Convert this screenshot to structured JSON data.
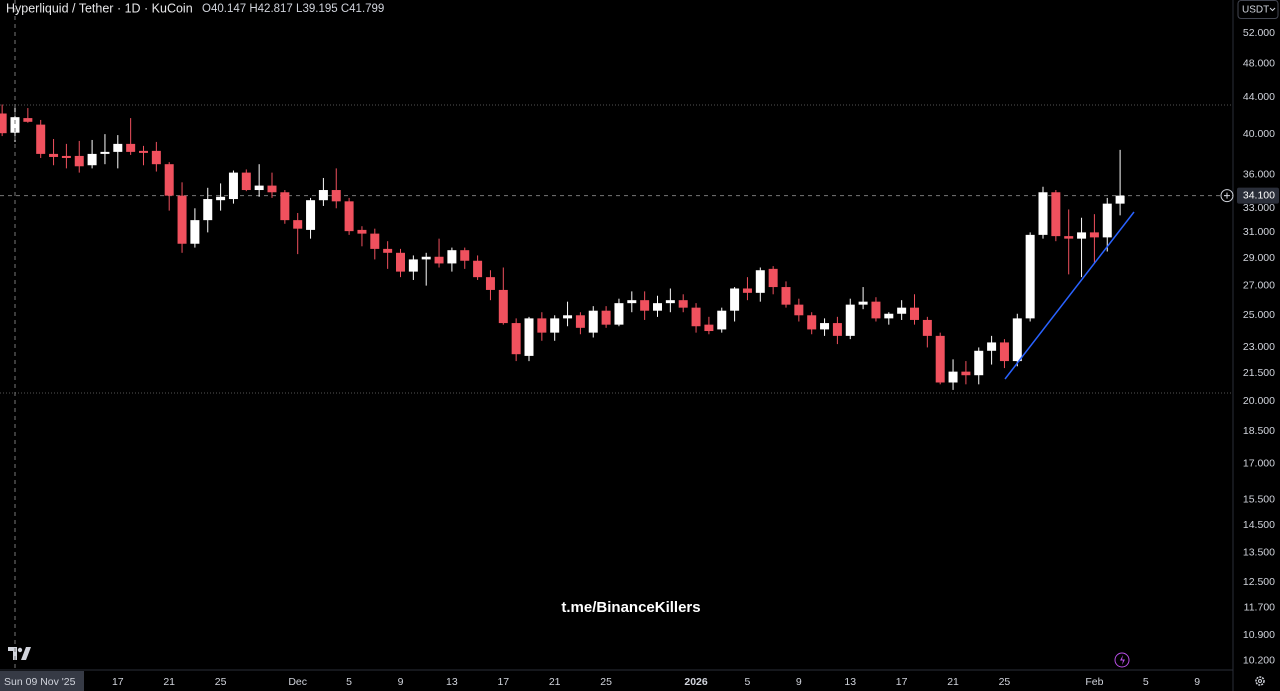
{
  "chart_data": {
    "type": "candlestick",
    "title": "Hyperliquid / Tether · 1D · KuCoin",
    "legend_labels": [
      "O",
      "H",
      "L",
      "C"
    ],
    "currency": "USDT",
    "watermark": "t.me/BinanceKillers",
    "scale": "log",
    "grid": false,
    "up_color": "#ffffff",
    "down_color": "#f0515e",
    "categories": [
      null,
      "Sun 09 Nov '25",
      null,
      null,
      null,
      null,
      null,
      null,
      null,
      "17",
      null,
      null,
      null,
      "21",
      null,
      null,
      null,
      "25",
      null,
      null,
      null,
      null,
      null,
      "Dec",
      null,
      null,
      null,
      "5",
      null,
      null,
      null,
      "9",
      null,
      null,
      null,
      "13",
      null,
      null,
      null,
      "17",
      null,
      null,
      null,
      "21",
      null,
      null,
      null,
      "25",
      null,
      null,
      null,
      null,
      null,
      null,
      "2026",
      null,
      null,
      null,
      "5",
      null,
      null,
      null,
      "9",
      null,
      null,
      null,
      "13",
      null,
      null,
      null,
      "17",
      null,
      null,
      null,
      "21",
      null,
      null,
      null,
      "25",
      null,
      null,
      null,
      null,
      null,
      null,
      "Feb",
      null,
      null,
      null,
      "5",
      null,
      null,
      null,
      "9"
    ],
    "open": [
      42.2,
      40.147,
      41.7,
      41.0,
      38.0,
      37.8,
      37.8,
      36.9,
      38.0,
      38.2,
      39.0,
      38.3,
      38.3,
      37.0,
      34.1,
      30.1,
      32.0,
      33.7,
      33.8,
      36.2,
      34.6,
      35.0,
      34.4,
      32.0,
      31.2,
      33.7,
      34.6,
      33.6,
      31.2,
      30.9,
      29.7,
      29.4,
      28.0,
      28.9,
      29.1,
      28.6,
      29.6,
      28.8,
      27.6,
      26.7,
      24.5,
      22.5,
      24.8,
      23.9,
      24.8,
      25.0,
      23.9,
      25.3,
      24.4,
      25.8,
      26.0,
      25.3,
      25.8,
      26.0,
      25.5,
      24.4,
      24.1,
      25.3,
      26.8,
      26.5,
      28.2,
      26.9,
      25.7,
      25.0,
      24.1,
      24.5,
      23.7,
      25.7,
      25.9,
      24.8,
      25.1,
      25.5,
      24.7,
      23.7,
      21.0,
      21.6,
      21.4,
      22.8,
      23.3,
      22.2,
      24.8,
      30.8,
      34.4,
      30.7,
      30.5,
      31.0,
      30.6,
      33.4,
      null,
      null,
      null,
      null,
      null,
      null
    ],
    "high": [
      43.2,
      42.817,
      42.8,
      41.5,
      39.5,
      39.0,
      39.3,
      39.4,
      40.0,
      39.9,
      41.7,
      38.8,
      39.2,
      37.2,
      35.3,
      33.0,
      34.8,
      35.2,
      36.4,
      36.5,
      37.0,
      36.2,
      34.6,
      32.6,
      33.9,
      35.7,
      36.6,
      33.9,
      31.5,
      31.3,
      30.3,
      29.7,
      29.2,
      29.4,
      30.5,
      29.8,
      29.8,
      29.2,
      28.1,
      28.3,
      24.8,
      24.9,
      25.2,
      25.0,
      25.9,
      25.2,
      25.6,
      25.6,
      26.1,
      26.6,
      26.6,
      26.3,
      26.8,
      26.4,
      25.8,
      24.9,
      25.5,
      26.9,
      27.6,
      28.3,
      28.4,
      27.3,
      26.1,
      25.2,
      24.8,
      24.9,
      26.1,
      26.9,
      26.2,
      25.2,
      26.0,
      26.4,
      24.9,
      23.9,
      22.3,
      22.2,
      23.0,
      23.7,
      23.5,
      25.1,
      31.0,
      34.9,
      34.6,
      32.9,
      32.2,
      32.5,
      33.9,
      38.4,
      null,
      null,
      null,
      null,
      null,
      null
    ],
    "low": [
      39.8,
      39.195,
      41.2,
      37.6,
      36.9,
      36.6,
      36.2,
      36.6,
      37.0,
      36.6,
      37.9,
      36.9,
      36.3,
      32.8,
      29.4,
      29.8,
      31.0,
      32.8,
      33.4,
      34.5,
      34.0,
      33.9,
      31.7,
      29.3,
      30.5,
      33.2,
      33.0,
      30.8,
      29.9,
      28.9,
      28.2,
      27.6,
      27.4,
      27.0,
      28.3,
      28.0,
      28.2,
      27.4,
      26.0,
      24.4,
      22.2,
      22.2,
      23.4,
      23.4,
      24.3,
      23.8,
      23.6,
      24.2,
      24.3,
      25.2,
      24.7,
      24.9,
      25.2,
      25.2,
      23.9,
      23.8,
      23.9,
      24.6,
      26.0,
      25.9,
      26.4,
      25.5,
      24.6,
      23.8,
      23.7,
      23.2,
      23.5,
      25.4,
      24.6,
      24.4,
      24.7,
      24.4,
      23.0,
      20.9,
      20.6,
      20.9,
      20.9,
      22.0,
      21.8,
      21.9,
      24.6,
      30.5,
      30.3,
      27.8,
      27.6,
      28.6,
      29.5,
      32.4,
      null,
      null,
      null,
      null,
      null,
      null
    ],
    "close": [
      40.1,
      41.799,
      41.3,
      38.0,
      37.7,
      37.6,
      36.8,
      38.0,
      38.2,
      39.0,
      38.2,
      38.1,
      37.0,
      34.1,
      30.1,
      32.0,
      33.8,
      34.0,
      36.2,
      34.6,
      35.0,
      34.4,
      32.0,
      31.3,
      33.7,
      34.6,
      33.6,
      31.1,
      30.9,
      29.7,
      29.4,
      28.0,
      28.9,
      29.1,
      28.6,
      29.6,
      28.8,
      27.6,
      26.7,
      24.5,
      22.6,
      24.8,
      23.9,
      24.8,
      25.0,
      24.2,
      25.3,
      24.4,
      25.8,
      26.0,
      25.3,
      25.8,
      26.0,
      25.5,
      24.3,
      24.0,
      25.3,
      26.8,
      26.5,
      28.1,
      26.9,
      25.7,
      25.0,
      24.1,
      24.5,
      23.7,
      25.7,
      25.9,
      24.8,
      25.1,
      25.5,
      24.7,
      23.7,
      21.0,
      21.6,
      21.4,
      22.8,
      23.3,
      22.2,
      24.8,
      30.8,
      34.4,
      30.7,
      30.5,
      31.0,
      30.6,
      33.4,
      34.1,
      null,
      null,
      null,
      null,
      null,
      null
    ],
    "ylim": [
      9.96,
      56.65
    ],
    "yticks": [
      {
        "value": 52,
        "label": "52.000"
      },
      {
        "value": 48,
        "label": "48.000"
      },
      {
        "value": 44,
        "label": "44.000"
      },
      {
        "value": 40,
        "label": "40.000"
      },
      {
        "value": 36,
        "label": "36.000"
      },
      {
        "value": 33,
        "label": "33.000"
      },
      {
        "value": 31,
        "label": "31.000"
      },
      {
        "value": 29,
        "label": "29.000"
      },
      {
        "value": 27,
        "label": "27.000"
      },
      {
        "value": 25,
        "label": "25.000"
      },
      {
        "value": 23,
        "label": "23.000"
      },
      {
        "value": 21.5,
        "label": "21.500"
      },
      {
        "value": 20,
        "label": "20.000"
      },
      {
        "value": 18.5,
        "label": "18.500"
      },
      {
        "value": 17,
        "label": "17.000"
      },
      {
        "value": 15.5,
        "label": "15.500"
      },
      {
        "value": 14.5,
        "label": "14.500"
      },
      {
        "value": 13.5,
        "label": "13.500"
      },
      {
        "value": 12.5,
        "label": "12.500"
      },
      {
        "value": 11.7,
        "label": "11.700"
      },
      {
        "value": 10.9,
        "label": "10.900"
      },
      {
        "value": 10.2,
        "label": "10.200"
      }
    ],
    "price_marker": {
      "value": 34.1,
      "label": "34.100"
    }
  }
}
